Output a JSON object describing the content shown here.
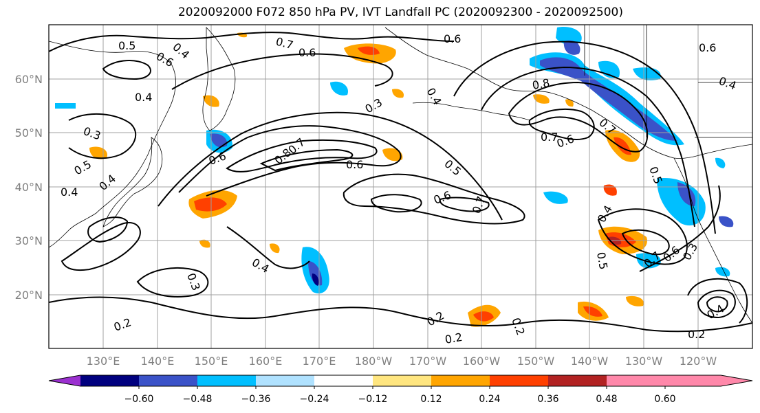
{
  "title": "2020092000 F072 850 hPa PV, IVT Landfall PC (2020092300 - 2020092500)",
  "map": {
    "lat_labels": [
      "60°N",
      "50°N",
      "40°N",
      "30°N",
      "20°N"
    ],
    "lon_labels": [
      "130°E",
      "140°E",
      "150°E",
      "160°E",
      "170°E",
      "180°W",
      "170°W",
      "160°W",
      "150°W",
      "140°W",
      "130°W",
      "120°W"
    ],
    "contour_labels": [
      "0.5",
      "0.4",
      "0.6",
      "0.7",
      "0.6",
      "0.6",
      "0.4",
      "0.3",
      "0.4",
      "0.3",
      "0.5",
      "0.4",
      "0.6",
      "0.8",
      "0.7",
      "0.6",
      "0.5",
      "0.6",
      "0.7",
      "0.8",
      "0.7",
      "0.6",
      "0.7",
      "0.6",
      "0.5",
      "0.4",
      "0.5",
      "0.6",
      "0.7",
      "0.4",
      "0.3",
      "0.2",
      "0.2",
      "0.2",
      "0.2",
      "0.4",
      "0.2",
      "0.4",
      "0.4",
      "0.3"
    ]
  },
  "colorbar": {
    "colors": [
      "#9b30d0",
      "#00007f",
      "#3a52c8",
      "#00bfff",
      "#b0e2ff",
      "#ffffff",
      "#ffe680",
      "#ffa500",
      "#ff4000",
      "#b22222",
      "#ff88aa"
    ],
    "tick_labels": [
      "−0.60",
      "−0.48",
      "−0.36",
      "−0.24",
      "−0.12",
      "0.12",
      "0.24",
      "0.36",
      "0.48",
      "0.60"
    ]
  }
}
